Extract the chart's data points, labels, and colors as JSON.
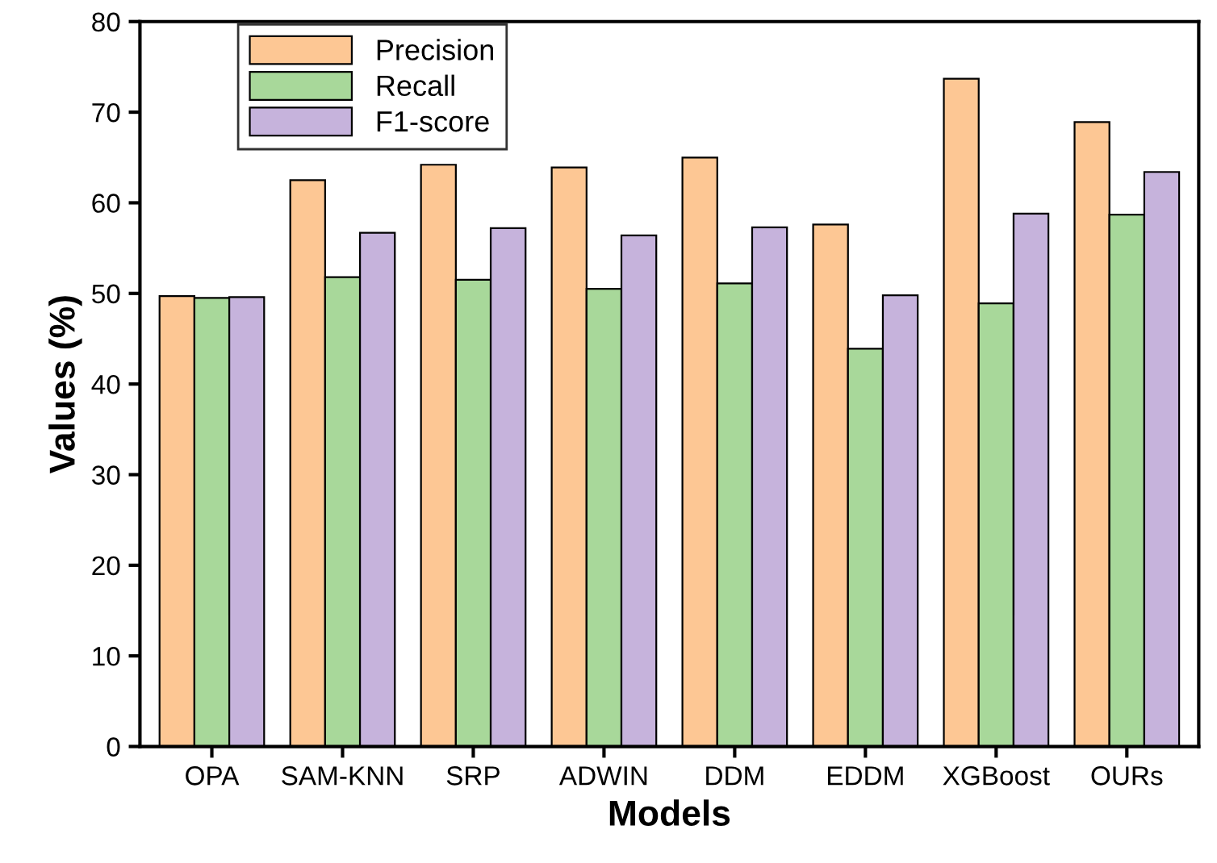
{
  "chart_data": {
    "type": "bar",
    "xlabel": "Models",
    "ylabel": "Values (%)",
    "categories": [
      "OPA",
      "SAM-KNN",
      "SRP",
      "ADWIN",
      "DDM",
      "EDDM",
      "XGBoost",
      "OURs"
    ],
    "series": [
      {
        "name": "Precision",
        "color": "#fdc794",
        "values": [
          49.7,
          62.5,
          64.2,
          63.9,
          65.0,
          57.6,
          73.7,
          68.9
        ]
      },
      {
        "name": "Recall",
        "color": "#a8d89a",
        "values": [
          49.5,
          51.8,
          51.5,
          50.5,
          51.1,
          43.9,
          48.9,
          58.7
        ]
      },
      {
        "name": "F1-score",
        "color": "#c6b3dc",
        "values": [
          49.6,
          56.7,
          57.2,
          56.4,
          57.3,
          49.8,
          58.8,
          63.4
        ]
      }
    ],
    "ylim": [
      0,
      80
    ],
    "yticks": [
      0,
      10,
      20,
      30,
      40,
      50,
      60,
      70,
      80
    ],
    "legend": "top left",
    "grid": false
  }
}
